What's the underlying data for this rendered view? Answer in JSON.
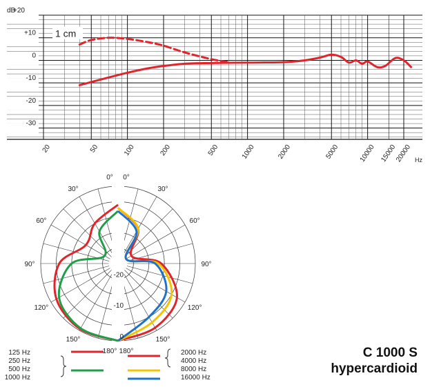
{
  "product": {
    "model": "C 1000 S",
    "pattern": "hypercardioid"
  },
  "chart_data": [
    {
      "type": "line",
      "title": "",
      "xlabel": "Hz",
      "ylabel": "dB",
      "x_scale": "log",
      "xlim": [
        20,
        20000
      ],
      "ylim": [
        -35,
        20
      ],
      "grid": true,
      "x_ticks": [
        20,
        50,
        100,
        200,
        500,
        1000,
        2000,
        5000,
        10000,
        15000,
        20000
      ],
      "x_tick_labels": [
        "20",
        "50",
        "100",
        "200",
        "500",
        "1000",
        "2000",
        "5000",
        "10000",
        "15000",
        "20000"
      ],
      "y_ticks": [
        20,
        10,
        0,
        -10,
        -20,
        -30
      ],
      "y_tick_labels": [
        "+20",
        "+10",
        "0",
        "-10",
        "-20",
        "-30"
      ],
      "annotation": "1 cm",
      "color": "#e0242b",
      "series": [
        {
          "name": "",
          "style": "solid",
          "x": [
            40,
            60,
            100,
            150,
            200,
            300,
            500,
            1000,
            2000,
            3000,
            4000,
            5000,
            6000,
            7000,
            8000,
            9000,
            10000,
            12000,
            14000,
            17000,
            20000,
            23000
          ],
          "y": [
            -11,
            -8.5,
            -5.5,
            -3.5,
            -2.5,
            -1.5,
            -1.2,
            -1,
            -0.8,
            0,
            1.2,
            2.5,
            1.5,
            -1,
            0,
            -1.5,
            -0.5,
            -3,
            -2.5,
            1,
            0,
            -3
          ]
        },
        {
          "name": "1 cm",
          "style": "dashed",
          "x": [
            40,
            50,
            70,
            100,
            150,
            200,
            300,
            500,
            700
          ],
          "y": [
            7,
            9,
            10,
            9.5,
            8,
            6.5,
            3.5,
            0.5,
            -0.8
          ]
        }
      ]
    },
    {
      "type": "polar",
      "title": "",
      "angle_labels_left": [
        "180°",
        "150°",
        "120°",
        "90°",
        "60°",
        "30°",
        "0°"
      ],
      "angle_labels_right": [
        "180°",
        "150°",
        "120°",
        "90°",
        "60°",
        "30°",
        "0°"
      ],
      "radial_labels": [
        "-20",
        "-10",
        "0"
      ],
      "rlim_db": [
        -25,
        0
      ],
      "angle_deg": [
        0,
        30,
        60,
        90,
        120,
        150,
        180
      ],
      "left_half": [
        {
          "name": "125 Hz / 250 Hz",
          "color": "#e0242b",
          "level_db": [
            0,
            -0.5,
            -2,
            -6,
            -13,
            -10,
            -6
          ]
        },
        {
          "name": "500 Hz / 1000 Hz",
          "color": "#1f9e47",
          "level_db": [
            0,
            -0.8,
            -3,
            -10,
            -20,
            -13,
            -8
          ]
        }
      ],
      "right_half": [
        {
          "name": "2000 Hz / 4000 Hz",
          "color": "#e0242b",
          "level_db": [
            0,
            -1,
            -3,
            -11,
            -20,
            -12,
            -7
          ]
        },
        {
          "name": "8000 Hz",
          "color": "#f5c400",
          "level_db": [
            0,
            -3,
            -5,
            -12,
            -22,
            -12,
            -7
          ]
        },
        {
          "name": "16000 Hz",
          "color": "#1e73c8",
          "level_db": [
            0,
            -5,
            -7,
            -13,
            -22,
            -13,
            -8
          ]
        }
      ],
      "legend_left": [
        "125 Hz",
        "250 Hz",
        "500 Hz",
        "1000 Hz"
      ],
      "legend_right": [
        "2000 Hz",
        "4000 Hz",
        "8000 Hz",
        "16000 Hz"
      ]
    }
  ]
}
